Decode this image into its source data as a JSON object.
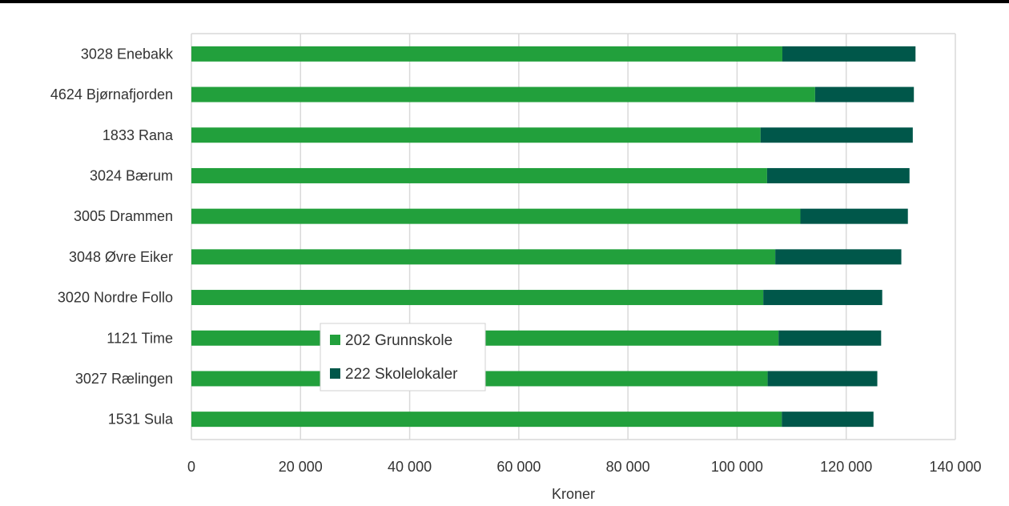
{
  "chart_data": {
    "type": "bar",
    "orientation": "horizontal",
    "stacked": true,
    "title": "",
    "xlabel": "Kroner",
    "ylabel": "",
    "xlim": [
      0,
      140000
    ],
    "x_ticks": [
      0,
      20000,
      40000,
      60000,
      80000,
      100000,
      120000,
      140000
    ],
    "x_tick_labels": [
      "0",
      "20 000",
      "40 000",
      "60 000",
      "80 000",
      "100 000",
      "120 000",
      "140 000"
    ],
    "grid": "vertical",
    "legend_position": "inside-lower-left",
    "categories": [
      "3028 Enebakk",
      "4624 Bjørnafjorden",
      "1833 Rana",
      "3024 Bærum",
      "3005 Drammen",
      "3048 Øvre Eiker",
      "3020 Nordre Follo",
      "1121 Time",
      "3027 Rælingen",
      "1531 Sula"
    ],
    "series": [
      {
        "name": "202 Grunnskole",
        "color": "#22a03c",
        "values": [
          108300,
          114300,
          104300,
          105500,
          111600,
          107000,
          104800,
          107600,
          105600,
          108200
        ]
      },
      {
        "name": "222 Skolelokaler",
        "color": "#00574a",
        "values": [
          24400,
          18100,
          27900,
          26100,
          19700,
          23100,
          21800,
          18800,
          20100,
          16800
        ]
      }
    ]
  }
}
